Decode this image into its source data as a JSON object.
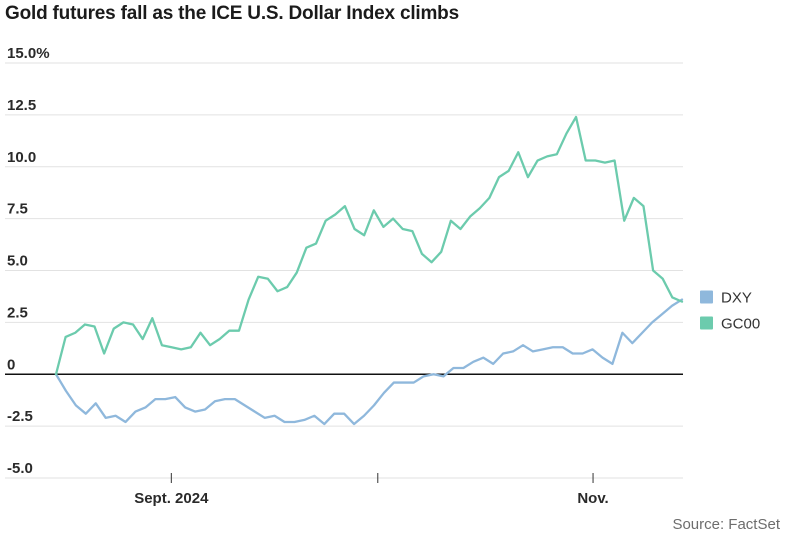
{
  "chart_data": {
    "type": "line",
    "title": "Gold futures fall as the ICE U.S. Dollar Index climbs",
    "source": "Source: FactSet",
    "xlabel": "",
    "ylabel": "",
    "ylim": [
      -5,
      15
    ],
    "yticks": [
      {
        "value": 15,
        "label": "15.0%"
      },
      {
        "value": 12.5,
        "label": "12.5"
      },
      {
        "value": 10,
        "label": "10.0"
      },
      {
        "value": 7.5,
        "label": "7.5"
      },
      {
        "value": 5,
        "label": "5.0"
      },
      {
        "value": 2.5,
        "label": "2.5"
      },
      {
        "value": 0,
        "label": "0"
      },
      {
        "value": -2.5,
        "label": "-2.5"
      },
      {
        "value": -5,
        "label": "-5.0"
      }
    ],
    "xlim": [
      0,
      57
    ],
    "xticks": [
      {
        "pos": 10.5,
        "label": "Sept. 2024"
      },
      {
        "pos": 29.3,
        "label": ""
      },
      {
        "pos": 48.9,
        "label": "Nov."
      }
    ],
    "grid": true,
    "legend_position": "right",
    "series": [
      {
        "name": "DXY",
        "color": "#8fb8dc",
        "values": [
          0,
          -0.8,
          -1.5,
          -1.9,
          -1.4,
          -2.1,
          -2.0,
          -2.3,
          -1.8,
          -1.6,
          -1.2,
          -1.2,
          -1.1,
          -1.6,
          -1.8,
          -1.7,
          -1.3,
          -1.2,
          -1.2,
          -1.5,
          -1.8,
          -2.1,
          -2.0,
          -2.3,
          -2.3,
          -2.2,
          -2.0,
          -2.4,
          -1.9,
          -1.9,
          -2.4,
          -2.0,
          -1.5,
          -0.9,
          -0.4,
          -0.4,
          -0.4,
          -0.1,
          0.0,
          -0.1,
          0.3,
          0.3,
          0.6,
          0.8,
          0.5,
          1.0,
          1.1,
          1.4,
          1.1,
          1.2,
          1.3,
          1.3,
          1.0,
          1.0,
          1.2,
          0.8,
          0.5,
          2.0,
          1.5,
          2.0,
          2.5,
          2.9,
          3.3,
          3.6
        ]
      },
      {
        "name": "GC00",
        "color": "#6ccbad",
        "values": [
          0,
          1.8,
          2.0,
          2.4,
          2.3,
          1.0,
          2.2,
          2.5,
          2.4,
          1.7,
          2.7,
          1.4,
          1.3,
          1.2,
          1.3,
          2.0,
          1.4,
          1.7,
          2.1,
          2.1,
          3.6,
          4.7,
          4.6,
          4.0,
          4.2,
          4.9,
          6.1,
          6.3,
          7.4,
          7.7,
          8.1,
          7.0,
          6.7,
          7.9,
          7.1,
          7.5,
          7.0,
          6.9,
          5.8,
          5.4,
          5.9,
          7.4,
          7.0,
          7.6,
          8.0,
          8.5,
          9.5,
          9.8,
          10.7,
          9.5,
          10.3,
          10.5,
          10.6,
          11.6,
          12.4,
          10.3,
          10.3,
          10.2,
          10.3,
          7.4,
          8.5,
          8.1,
          5.0,
          4.6,
          3.7,
          3.5
        ]
      }
    ]
  }
}
